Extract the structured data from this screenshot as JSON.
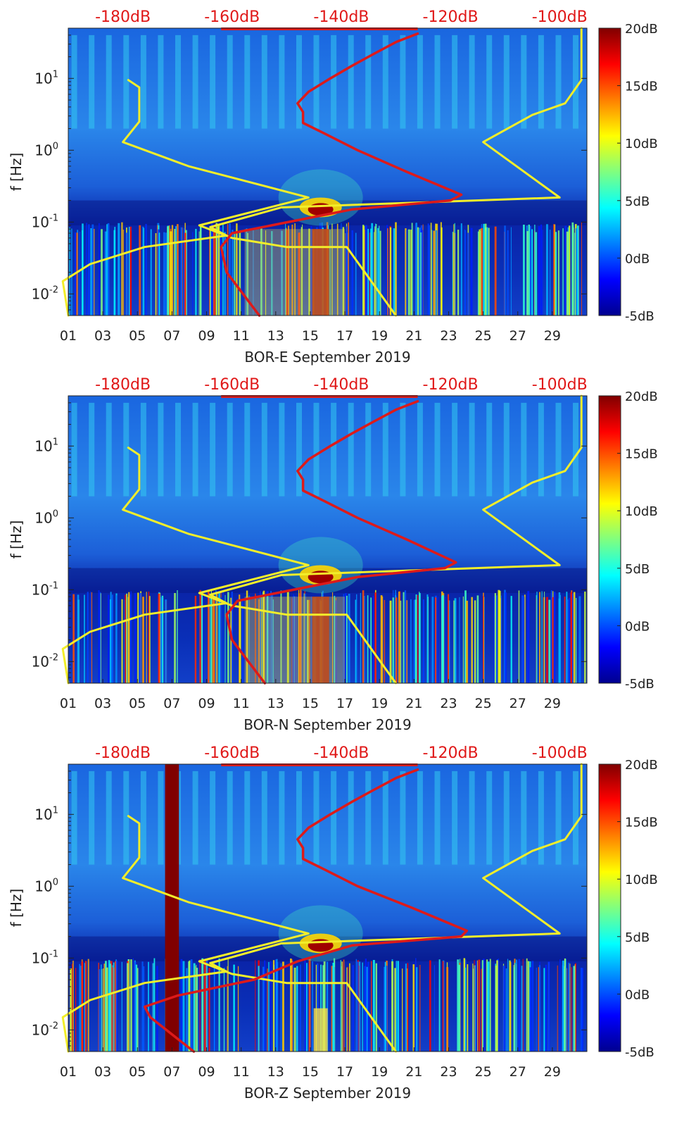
{
  "chart_data": [
    {
      "type": "heatmap",
      "xlabel": "BOR-E September 2019",
      "ylabel": "f [Hz]",
      "x_ticks": [
        "01",
        "03",
        "05",
        "07",
        "09",
        "11",
        "13",
        "15",
        "17",
        "19",
        "21",
        "23",
        "25",
        "27",
        "29"
      ],
      "y_ticks": [
        "10^{-2}",
        "10^{-1}",
        "10^{0}",
        "10^{1}"
      ],
      "ylim": [
        0.005,
        50
      ],
      "xlim": [
        1,
        31
      ],
      "top_axis_ticks": [
        "-180dB",
        "-160dB",
        "-140dB",
        "-120dB",
        "-100dB"
      ],
      "top_axis_range": [
        -190,
        -95
      ],
      "colorbar": {
        "ticks": [
          "20dB",
          "15dB",
          "10dB",
          "5dB",
          "0dB",
          "-5dB"
        ],
        "range": [
          -5,
          20
        ]
      },
      "series": [
        {
          "name": "noise model (yellow)",
          "color": "#f2ee2a",
          "points": [
            [
              -190,
              0.005
            ],
            [
              -191,
              0.015
            ],
            [
              -186,
              0.026
            ],
            [
              -176,
              0.045
            ],
            [
              -161,
              0.065
            ],
            [
              -164,
              0.085
            ],
            [
              -151,
              0.16
            ],
            [
              -100,
              0.22
            ],
            [
              -114,
              1.3
            ],
            [
              -105,
              3.1
            ],
            [
              -99,
              4.5
            ],
            [
              -96,
              9.5
            ],
            [
              -96,
              50
            ]
          ]
        },
        {
          "name": "noise model (yellow)",
          "color": "#f2ee2a",
          "points": [
            [
              -179,
              9.5
            ],
            [
              -177,
              7.5
            ],
            [
              -177,
              2.5
            ],
            [
              -180,
              1.3
            ],
            [
              -168,
              0.6
            ],
            [
              -146,
              0.22
            ],
            [
              -166,
              0.09
            ],
            [
              -160,
              0.06
            ],
            [
              -150,
              0.045
            ],
            [
              -139,
              0.045
            ],
            [
              -130,
              0.005
            ]
          ]
        },
        {
          "name": "station PSD (red)",
          "color": "#dd1a1a",
          "points": [
            [
              -155,
              0.005
            ],
            [
              -158,
              0.01
            ],
            [
              -161,
              0.02
            ],
            [
              -162,
              0.045
            ],
            [
              -160,
              0.07
            ],
            [
              -147,
              0.11
            ],
            [
              -138,
              0.15
            ],
            [
              -120,
              0.2
            ],
            [
              -118,
              0.24
            ],
            [
              -128,
              0.5
            ],
            [
              -137,
              1.0
            ],
            [
              -143,
              1.7
            ],
            [
              -147,
              2.4
            ],
            [
              -147,
              3.4
            ],
            [
              -148,
              4.5
            ],
            [
              -146,
              6.5
            ],
            [
              -142,
              10
            ],
            [
              -138,
              15
            ],
            [
              -134,
              22
            ],
            [
              -130,
              32
            ],
            [
              -126,
              42
            ]
          ]
        }
      ]
    },
    {
      "type": "heatmap",
      "xlabel": "BOR-N September 2019",
      "ylabel": "f [Hz]",
      "x_ticks": [
        "01",
        "03",
        "05",
        "07",
        "09",
        "11",
        "13",
        "15",
        "17",
        "19",
        "21",
        "23",
        "25",
        "27",
        "29"
      ],
      "y_ticks": [
        "10^{-2}",
        "10^{-1}",
        "10^{0}",
        "10^{1}"
      ],
      "ylim": [
        0.005,
        50
      ],
      "xlim": [
        1,
        31
      ],
      "top_axis_ticks": [
        "-180dB",
        "-160dB",
        "-140dB",
        "-120dB",
        "-100dB"
      ],
      "top_axis_range": [
        -190,
        -95
      ],
      "colorbar": {
        "ticks": [
          "20dB",
          "15dB",
          "10dB",
          "5dB",
          "0dB",
          "-5dB"
        ],
        "range": [
          -5,
          20
        ]
      },
      "series": [
        {
          "name": "noise model (yellow)",
          "color": "#f2ee2a",
          "points": [
            [
              -190,
              0.005
            ],
            [
              -191,
              0.015
            ],
            [
              -186,
              0.026
            ],
            [
              -176,
              0.045
            ],
            [
              -161,
              0.065
            ],
            [
              -164,
              0.085
            ],
            [
              -151,
              0.16
            ],
            [
              -100,
              0.22
            ],
            [
              -114,
              1.3
            ],
            [
              -105,
              3.1
            ],
            [
              -99,
              4.5
            ],
            [
              -96,
              9.5
            ],
            [
              -96,
              50
            ]
          ]
        },
        {
          "name": "noise model (yellow)",
          "color": "#f2ee2a",
          "points": [
            [
              -179,
              9.5
            ],
            [
              -177,
              7.5
            ],
            [
              -177,
              2.5
            ],
            [
              -180,
              1.3
            ],
            [
              -168,
              0.6
            ],
            [
              -146,
              0.22
            ],
            [
              -166,
              0.09
            ],
            [
              -160,
              0.06
            ],
            [
              -150,
              0.045
            ],
            [
              -139,
              0.045
            ],
            [
              -130,
              0.005
            ]
          ]
        },
        {
          "name": "station PSD (red)",
          "color": "#dd1a1a",
          "points": [
            [
              -154,
              0.005
            ],
            [
              -157,
              0.01
            ],
            [
              -160,
              0.02
            ],
            [
              -161,
              0.045
            ],
            [
              -159,
              0.07
            ],
            [
              -146,
              0.11
            ],
            [
              -137,
              0.15
            ],
            [
              -121,
              0.2
            ],
            [
              -119,
              0.24
            ],
            [
              -128,
              0.5
            ],
            [
              -137,
              1.0
            ],
            [
              -143,
              1.7
            ],
            [
              -147,
              2.4
            ],
            [
              -147,
              3.4
            ],
            [
              -148,
              4.5
            ],
            [
              -146,
              6.5
            ],
            [
              -142,
              10
            ],
            [
              -138,
              15
            ],
            [
              -134,
              22
            ],
            [
              -130,
              32
            ],
            [
              -126,
              42
            ]
          ]
        }
      ]
    },
    {
      "type": "heatmap",
      "xlabel": "BOR-Z September 2019",
      "ylabel": "f [Hz]",
      "x_ticks": [
        "01",
        "03",
        "05",
        "07",
        "09",
        "11",
        "13",
        "15",
        "17",
        "19",
        "21",
        "23",
        "25",
        "27",
        "29"
      ],
      "y_ticks": [
        "10^{-2}",
        "10^{-1}",
        "10^{0}",
        "10^{1}"
      ],
      "ylim": [
        0.005,
        50
      ],
      "xlim": [
        1,
        31
      ],
      "top_axis_ticks": [
        "-180dB",
        "-160dB",
        "-140dB",
        "-120dB",
        "-100dB"
      ],
      "top_axis_range": [
        -190,
        -95
      ],
      "colorbar": {
        "ticks": [
          "20dB",
          "15dB",
          "10dB",
          "5dB",
          "0dB",
          "-5dB"
        ],
        "range": [
          -5,
          20
        ]
      },
      "series": [
        {
          "name": "noise model (yellow)",
          "color": "#f2ee2a",
          "points": [
            [
              -190,
              0.005
            ],
            [
              -191,
              0.015
            ],
            [
              -186,
              0.026
            ],
            [
              -176,
              0.045
            ],
            [
              -161,
              0.065
            ],
            [
              -164,
              0.085
            ],
            [
              -151,
              0.16
            ],
            [
              -100,
              0.22
            ],
            [
              -114,
              1.3
            ],
            [
              -105,
              3.1
            ],
            [
              -99,
              4.5
            ],
            [
              -96,
              9.5
            ],
            [
              -96,
              50
            ]
          ]
        },
        {
          "name": "noise model (yellow)",
          "color": "#f2ee2a",
          "points": [
            [
              -179,
              9.5
            ],
            [
              -177,
              7.5
            ],
            [
              -177,
              2.5
            ],
            [
              -180,
              1.3
            ],
            [
              -168,
              0.6
            ],
            [
              -146,
              0.22
            ],
            [
              -166,
              0.09
            ],
            [
              -160,
              0.06
            ],
            [
              -150,
              0.045
            ],
            [
              -139,
              0.045
            ],
            [
              -130,
              0.005
            ]
          ]
        },
        {
          "name": "station PSD (red)",
          "color": "#dd1a1a",
          "points": [
            [
              -167,
              0.005
            ],
            [
              -175,
              0.015
            ],
            [
              -176,
              0.021
            ],
            [
              -170,
              0.03
            ],
            [
              -156,
              0.05
            ],
            [
              -148,
              0.09
            ],
            [
              -138,
              0.15
            ],
            [
              -118,
              0.2
            ],
            [
              -117,
              0.24
            ],
            [
              -127,
              0.5
            ],
            [
              -137,
              1.0
            ],
            [
              -143,
              1.7
            ],
            [
              -147,
              2.4
            ],
            [
              -147,
              3.4
            ],
            [
              -148,
              4.5
            ],
            [
              -146,
              6.5
            ],
            [
              -142,
              10
            ],
            [
              -138,
              15
            ],
            [
              -134,
              22
            ],
            [
              -130,
              32
            ],
            [
              -126,
              42
            ]
          ]
        }
      ],
      "annotations": [
        {
          "type": "vertical band",
          "x_start": 6.6,
          "x_end": 7.4,
          "level": "20dB"
        }
      ]
    }
  ]
}
